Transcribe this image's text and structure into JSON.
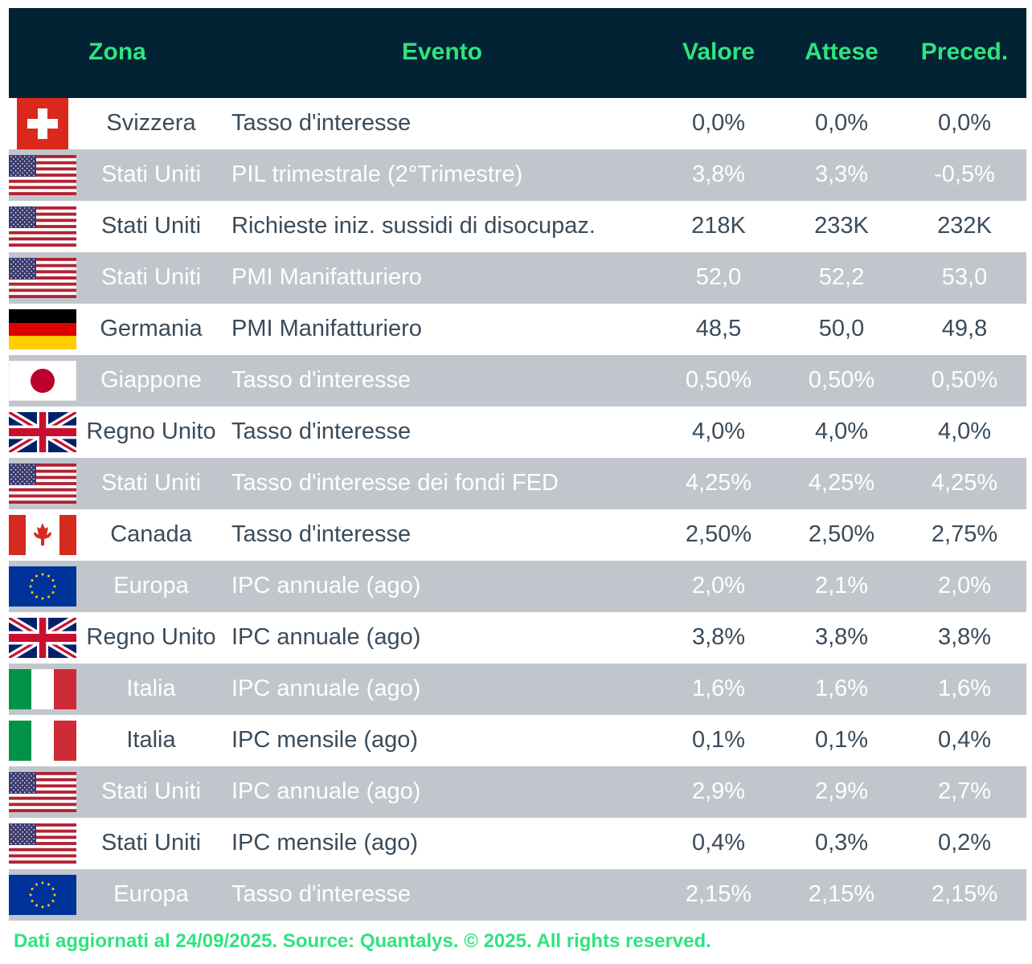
{
  "header": {
    "zona": "Zona",
    "evento": "Evento",
    "valore": "Valore",
    "attese": "Attese",
    "preced": "Preced."
  },
  "colors": {
    "header_bg": "#022334",
    "header_text": "#2fe37f",
    "alt_row": "#c0c6cc",
    "text": "#3a4b5a"
  },
  "rows": [
    {
      "flag": "switzerland-flag",
      "zona": "Svizzera",
      "evento": "Tasso d'interesse",
      "valore": "0,0%",
      "attese": "0,0%",
      "preced": "0,0%"
    },
    {
      "flag": "usa-flag",
      "zona": "Stati Uniti",
      "evento": "PIL trimestrale (2°Trimestre)",
      "valore": "3,8%",
      "attese": "3,3%",
      "preced": "-0,5%"
    },
    {
      "flag": "usa-flag",
      "zona": "Stati Uniti",
      "evento": "Richieste iniz. sussidi di disocupaz.",
      "valore": "218K",
      "attese": "233K",
      "preced": "232K"
    },
    {
      "flag": "usa-flag",
      "zona": "Stati Uniti",
      "evento": "PMI Manifatturiero",
      "valore": "52,0",
      "attese": "52,2",
      "preced": "53,0"
    },
    {
      "flag": "germany-flag",
      "zona": "Germania",
      "evento": "PMI Manifatturiero",
      "valore": "48,5",
      "attese": "50,0",
      "preced": "49,8"
    },
    {
      "flag": "japan-flag",
      "zona": "Giappone",
      "evento": "Tasso d'interesse",
      "valore": "0,50%",
      "attese": "0,50%",
      "preced": "0,50%"
    },
    {
      "flag": "uk-flag",
      "zona": "Regno Unito",
      "evento": "Tasso d'interesse",
      "valore": "4,0%",
      "attese": "4,0%",
      "preced": "4,0%"
    },
    {
      "flag": "usa-flag",
      "zona": "Stati Uniti",
      "evento": "Tasso d'interesse dei fondi FED",
      "valore": "4,25%",
      "attese": "4,25%",
      "preced": "4,25%"
    },
    {
      "flag": "canada-flag",
      "zona": "Canada",
      "evento": "Tasso d'interesse",
      "valore": "2,50%",
      "attese": "2,50%",
      "preced": "2,75%"
    },
    {
      "flag": "eu-flag",
      "zona": "Europa",
      "evento": "IPC annuale (ago)",
      "valore": "2,0%",
      "attese": "2,1%",
      "preced": "2,0%"
    },
    {
      "flag": "uk-flag",
      "zona": "Regno Unito",
      "evento": "IPC annuale (ago)",
      "valore": "3,8%",
      "attese": "3,8%",
      "preced": "3,8%"
    },
    {
      "flag": "italy-flag",
      "zona": "Italia",
      "evento": "IPC annuale (ago)",
      "valore": "1,6%",
      "attese": "1,6%",
      "preced": "1,6%"
    },
    {
      "flag": "italy-flag",
      "zona": "Italia",
      "evento": "IPC mensile (ago)",
      "valore": "0,1%",
      "attese": "0,1%",
      "preced": "0,4%"
    },
    {
      "flag": "usa-flag",
      "zona": "Stati Uniti",
      "evento": "IPC annuale (ago)",
      "valore": "2,9%",
      "attese": "2,9%",
      "preced": "2,7%"
    },
    {
      "flag": "usa-flag",
      "zona": "Stati Uniti",
      "evento": "IPC mensile (ago)",
      "valore": "0,4%",
      "attese": "0,3%",
      "preced": "0,2%"
    },
    {
      "flag": "eu-flag",
      "zona": "Europa",
      "evento": "Tasso d'interesse",
      "valore": "2,15%",
      "attese": "2,15%",
      "preced": "2,15%"
    }
  ],
  "footer": "Dati aggiornati al 24/09/2025. Source: Quantalys. © 2025. All rights reserved."
}
